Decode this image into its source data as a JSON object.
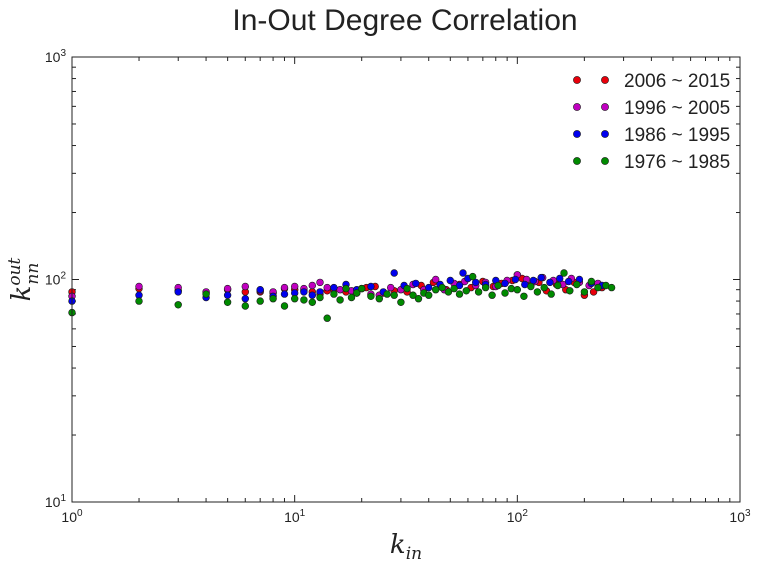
{
  "chart_data": {
    "type": "scatter",
    "title": "In-Out Degree Correlation",
    "xscale": "log",
    "yscale": "log",
    "xlim": [
      1,
      1000
    ],
    "ylim": [
      10,
      1000
    ],
    "xlabel": {
      "base": "k",
      "sub": "in"
    },
    "ylabel": {
      "base": "k",
      "sub": "nn",
      "sup": "out"
    },
    "xticks": [
      {
        "base": "10",
        "exp": "0"
      },
      {
        "base": "10",
        "exp": "1"
      },
      {
        "base": "10",
        "exp": "2"
      },
      {
        "base": "10",
        "exp": "3"
      }
    ],
    "yticks": [
      {
        "base": "10",
        "exp": "1"
      },
      {
        "base": "10",
        "exp": "2"
      },
      {
        "base": "10",
        "exp": "3"
      }
    ],
    "grid": false,
    "legend_position": "top-right",
    "series": [
      {
        "name": "2006 ~ 2015",
        "color": "#e8000b",
        "points": [
          [
            1,
            88
          ],
          [
            2,
            91
          ],
          [
            3,
            89
          ],
          [
            4,
            87
          ],
          [
            5,
            90
          ],
          [
            6,
            88
          ],
          [
            7,
            88
          ],
          [
            8,
            87
          ],
          [
            9,
            91
          ],
          [
            10,
            90
          ],
          [
            11,
            89
          ],
          [
            12,
            88
          ],
          [
            13,
            86
          ],
          [
            14,
            89
          ],
          [
            15,
            90
          ],
          [
            17,
            88
          ],
          [
            19,
            87
          ],
          [
            21,
            92
          ],
          [
            23,
            93
          ],
          [
            25,
            87
          ],
          [
            28,
            89
          ],
          [
            32,
            88
          ],
          [
            37,
            94
          ],
          [
            42,
            97
          ],
          [
            48,
            90
          ],
          [
            55,
            95
          ],
          [
            62,
            92
          ],
          [
            70,
            98
          ],
          [
            78,
            93
          ],
          [
            85,
            96
          ],
          [
            95,
            99
          ],
          [
            105,
            101
          ],
          [
            115,
            94
          ],
          [
            125,
            97
          ],
          [
            135,
            89
          ],
          [
            150,
            95
          ],
          [
            165,
            90
          ],
          [
            180,
            97
          ],
          [
            200,
            85
          ],
          [
            220,
            88
          ],
          [
            240,
            92
          ]
        ]
      },
      {
        "name": "1996 ~ 2005",
        "color": "#c000c0",
        "points": [
          [
            1,
            84
          ],
          [
            2,
            93
          ],
          [
            3,
            92
          ],
          [
            4,
            88
          ],
          [
            5,
            91
          ],
          [
            6,
            93
          ],
          [
            7,
            89
          ],
          [
            8,
            88
          ],
          [
            9,
            92
          ],
          [
            10,
            93
          ],
          [
            11,
            91
          ],
          [
            12,
            94
          ],
          [
            13,
            97
          ],
          [
            14,
            92
          ],
          [
            16,
            90
          ],
          [
            18,
            89
          ],
          [
            20,
            91
          ],
          [
            22,
            86
          ],
          [
            24,
            85
          ],
          [
            27,
            92
          ],
          [
            30,
            90
          ],
          [
            34,
            95
          ],
          [
            38,
            90
          ],
          [
            43,
            100
          ],
          [
            47,
            90
          ],
          [
            52,
            96
          ],
          [
            58,
            98
          ],
          [
            65,
            94
          ],
          [
            72,
            97
          ],
          [
            80,
            93
          ],
          [
            90,
            99
          ],
          [
            100,
            105
          ],
          [
            110,
            100
          ],
          [
            120,
            98
          ],
          [
            130,
            102
          ],
          [
            145,
            99
          ],
          [
            160,
            95
          ],
          [
            175,
            101
          ],
          [
            190,
            97
          ],
          [
            210,
            94
          ],
          [
            230,
            96
          ]
        ]
      },
      {
        "name": "1986 ~ 1995",
        "color": "#0000ee",
        "points": [
          [
            1,
            80
          ],
          [
            2,
            85
          ],
          [
            3,
            88
          ],
          [
            4,
            83
          ],
          [
            5,
            85
          ],
          [
            6,
            82
          ],
          [
            7,
            90
          ],
          [
            8,
            84
          ],
          [
            9,
            86
          ],
          [
            10,
            87
          ],
          [
            11,
            88
          ],
          [
            12,
            85
          ],
          [
            13,
            88
          ],
          [
            15,
            92
          ],
          [
            17,
            95
          ],
          [
            19,
            90
          ],
          [
            22,
            93
          ],
          [
            25,
            88
          ],
          [
            28,
            107
          ],
          [
            31,
            94
          ],
          [
            35,
            96
          ],
          [
            40,
            92
          ],
          [
            45,
            95
          ],
          [
            50,
            99
          ],
          [
            55,
            94
          ],
          [
            57,
            107
          ],
          [
            60,
            101
          ],
          [
            65,
            97
          ],
          [
            72,
            95
          ],
          [
            80,
            99
          ],
          [
            88,
            96
          ],
          [
            98,
            100
          ],
          [
            108,
            95
          ],
          [
            118,
            99
          ],
          [
            128,
            102
          ],
          [
            140,
            97
          ],
          [
            155,
            101
          ],
          [
            170,
            98
          ],
          [
            190,
            100
          ],
          [
            215,
            96
          ],
          [
            240,
            94
          ]
        ]
      },
      {
        "name": "1976 ~ 1985",
        "color": "#008a00",
        "points": [
          [
            1,
            71
          ],
          [
            2,
            80
          ],
          [
            3,
            77
          ],
          [
            4,
            86
          ],
          [
            5,
            79
          ],
          [
            6,
            76
          ],
          [
            7,
            80
          ],
          [
            8,
            82
          ],
          [
            9,
            76
          ],
          [
            10,
            82
          ],
          [
            11,
            81
          ],
          [
            12,
            79
          ],
          [
            13,
            83
          ],
          [
            14,
            67
          ],
          [
            15,
            86
          ],
          [
            16,
            81
          ],
          [
            17,
            91
          ],
          [
            18,
            83
          ],
          [
            19,
            87
          ],
          [
            20,
            91
          ],
          [
            22,
            84
          ],
          [
            24,
            82
          ],
          [
            26,
            86
          ],
          [
            28,
            85
          ],
          [
            30,
            79
          ],
          [
            32,
            91
          ],
          [
            34,
            85
          ],
          [
            36,
            82
          ],
          [
            38,
            87
          ],
          [
            40,
            85
          ],
          [
            43,
            90
          ],
          [
            46,
            92
          ],
          [
            49,
            88
          ],
          [
            52,
            91
          ],
          [
            55,
            86
          ],
          [
            59,
            89
          ],
          [
            63,
            103
          ],
          [
            67,
            88
          ],
          [
            72,
            92
          ],
          [
            77,
            85
          ],
          [
            82,
            94
          ],
          [
            88,
            87
          ],
          [
            94,
            91
          ],
          [
            100,
            90
          ],
          [
            107,
            84
          ],
          [
            115,
            93
          ],
          [
            123,
            88
          ],
          [
            132,
            92
          ],
          [
            142,
            86
          ],
          [
            152,
            94
          ],
          [
            162,
            107
          ],
          [
            172,
            89
          ],
          [
            185,
            95
          ],
          [
            200,
            88
          ],
          [
            215,
            98
          ],
          [
            230,
            92
          ],
          [
            250,
            94
          ],
          [
            265,
            92
          ]
        ]
      }
    ]
  }
}
